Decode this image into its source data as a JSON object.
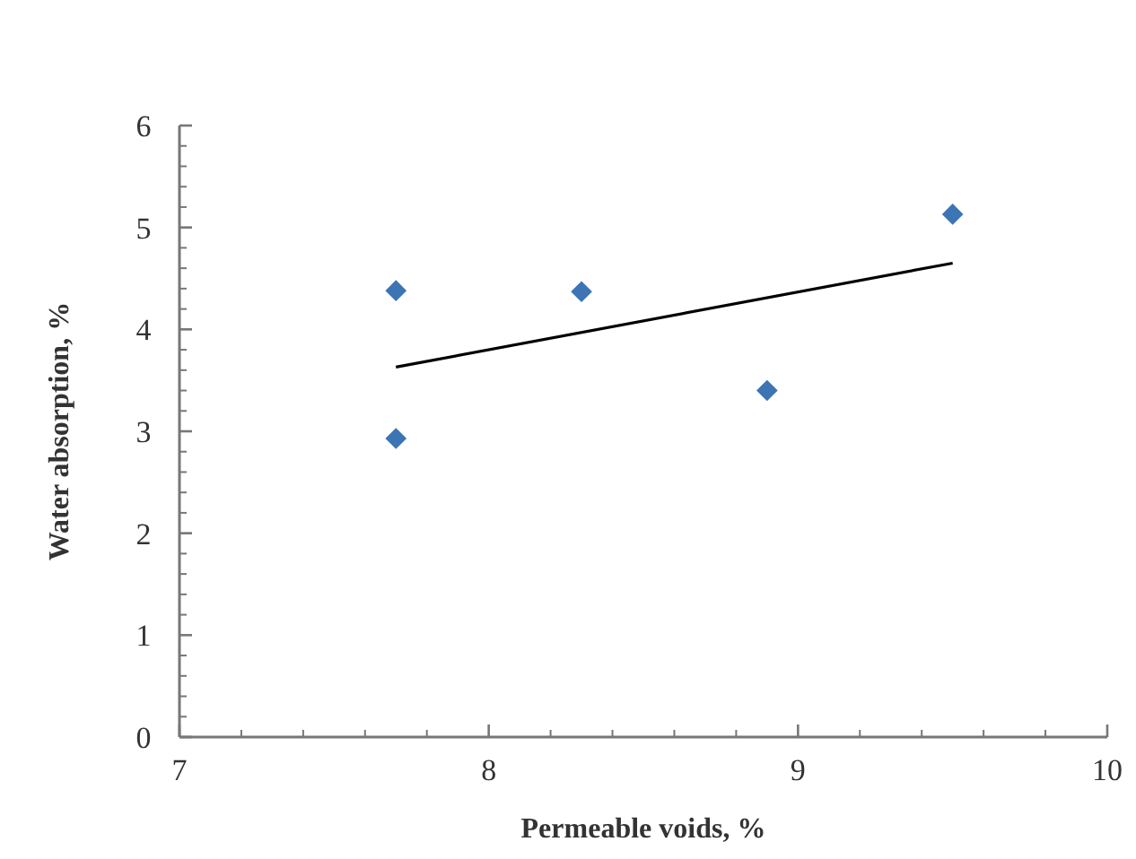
{
  "chart_data": {
    "type": "scatter",
    "xlabel": "Permeable voids, %",
    "ylabel": "Water absorption, %",
    "xlim": [
      7,
      10
    ],
    "xticks": [
      7,
      8,
      9,
      10
    ],
    "ylim": [
      0,
      6
    ],
    "yticks": [
      0,
      1,
      2,
      3,
      4,
      5,
      6
    ],
    "grid": false,
    "marker": "diamond",
    "series": [
      {
        "color": "#3c74b4",
        "x": [
          7.7,
          7.7,
          8.3,
          8.9,
          9.5
        ],
        "values": [
          4.38,
          2.93,
          4.37,
          3.4,
          5.13
        ]
      },
      {
        "type": "line",
        "color": "#000000",
        "x": [
          7.7,
          9.5
        ],
        "values": [
          3.63,
          4.65
        ],
        "marker": "none",
        "line_style": "solid"
      }
    ]
  }
}
